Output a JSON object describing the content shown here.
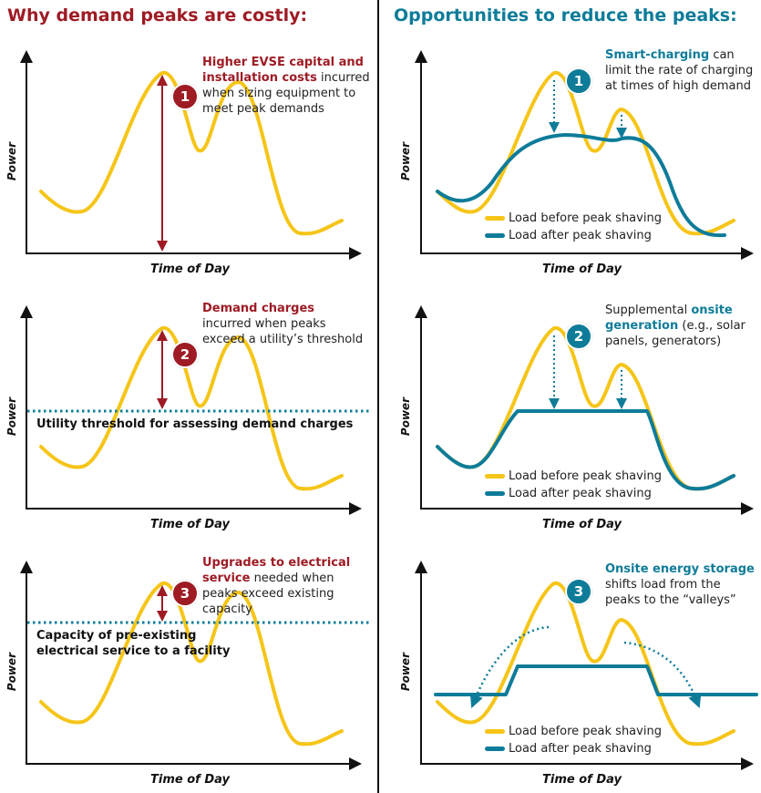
{
  "headings": {
    "left": "Why demand peaks are costly:",
    "right": "Opportunities to reduce the peaks:"
  },
  "axis": {
    "y": "Power",
    "x": "Time of Day"
  },
  "legend": {
    "before": "Load before peak shaving",
    "after": "Load after peak shaving"
  },
  "colors": {
    "load": "#f5c518",
    "shaved": "#0e7c99",
    "costly": "#9e1b24",
    "threshold": "#0e7c99"
  },
  "left_panels": [
    {
      "badge": "1",
      "title": "Higher EVSE capital and installation costs",
      "text": "incurred when sizing equipment to meet peak demands"
    },
    {
      "badge": "2",
      "title": "Demand charges",
      "text": "incurred when peaks exceed a utility’s threshold",
      "line_label": "Utility threshold for assessing demand charges"
    },
    {
      "badge": "3",
      "title": "Upgrades to electrical service",
      "text": "needed when peaks exceed existing capacity",
      "line_label_1": "Capacity of pre-existing",
      "line_label_2": "electrical service to a facility"
    }
  ],
  "right_panels": [
    {
      "badge": "1",
      "title": "Smart-charging",
      "text": "can limit the rate of charging at times of high demand"
    },
    {
      "badge": "2",
      "pre": "Supplemental",
      "title": "onsite generation",
      "text": "(e.g., solar panels, generators)"
    },
    {
      "badge": "3",
      "title": "Onsite energy storage",
      "text": "shifts load from the peaks to the “valleys”"
    }
  ]
}
